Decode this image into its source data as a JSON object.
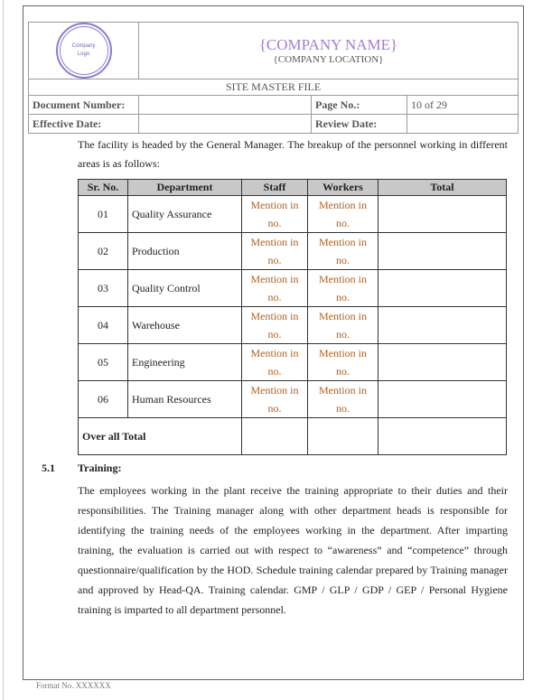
{
  "header": {
    "logo_text": "Company Logo",
    "company_name": "{COMPANY NAME}",
    "company_location": "{COMPANY LOCATION}",
    "doc_title": "SITE MASTER FILE",
    "document_number_label": "Document Number:",
    "document_number": "",
    "page_no_label": "Page No.:",
    "page_no": "10 of 29",
    "effective_date_label": "Effective Date:",
    "effective_date": "",
    "review_date_label": "Review Date:",
    "review_date": ""
  },
  "intro": "The facility is headed by the General Manager. The breakup of the personnel working in different areas is as follows:",
  "personnel_table": {
    "headers": [
      "Sr. No.",
      "Department",
      "Staff",
      "Workers",
      "Total"
    ],
    "rows": [
      {
        "sr": "01",
        "dept": "Quality Assurance",
        "staff": "Mention in no.",
        "workers": "Mention in no.",
        "total": ""
      },
      {
        "sr": "02",
        "dept": "Production",
        "staff": "Mention in no.",
        "workers": "Mention in no.",
        "total": ""
      },
      {
        "sr": "03",
        "dept": "Quality Control",
        "staff": "Mention in no.",
        "workers": "Mention in no.",
        "total": ""
      },
      {
        "sr": "04",
        "dept": "Warehouse",
        "staff": "Mention in no.",
        "workers": "Mention in no.",
        "total": ""
      },
      {
        "sr": "05",
        "dept": "Engineering",
        "staff": "Mention in no.",
        "workers": "Mention in no.",
        "total": ""
      },
      {
        "sr": "06",
        "dept": "Human Resources",
        "staff": "Mention in no.",
        "workers": "Mention in no.",
        "total": ""
      }
    ],
    "total_label": "Over all Total"
  },
  "section": {
    "number": "5.1",
    "title": "Training:",
    "body": "The employees working in the plant receive the training appropriate to their duties and their responsibilities. The Training manager along with other department heads is responsible for identifying the training needs of the employees working in the department.  After imparting training, the evaluation is carried out with respect to “awareness” and “competence” through questionnaire/qualification by the HOD. Schedule training calendar prepared by Training manager and approved by Head-QA. Training calendar. GMP / GLP / GDP / GEP / Personal Hygiene training is imparted to all department personnel."
  },
  "footer": "Format No. XXXXXX",
  "colors": {
    "company_name": "#a77bd0",
    "mention": "#b06020",
    "table_header_bg": "#c8c8c8"
  }
}
